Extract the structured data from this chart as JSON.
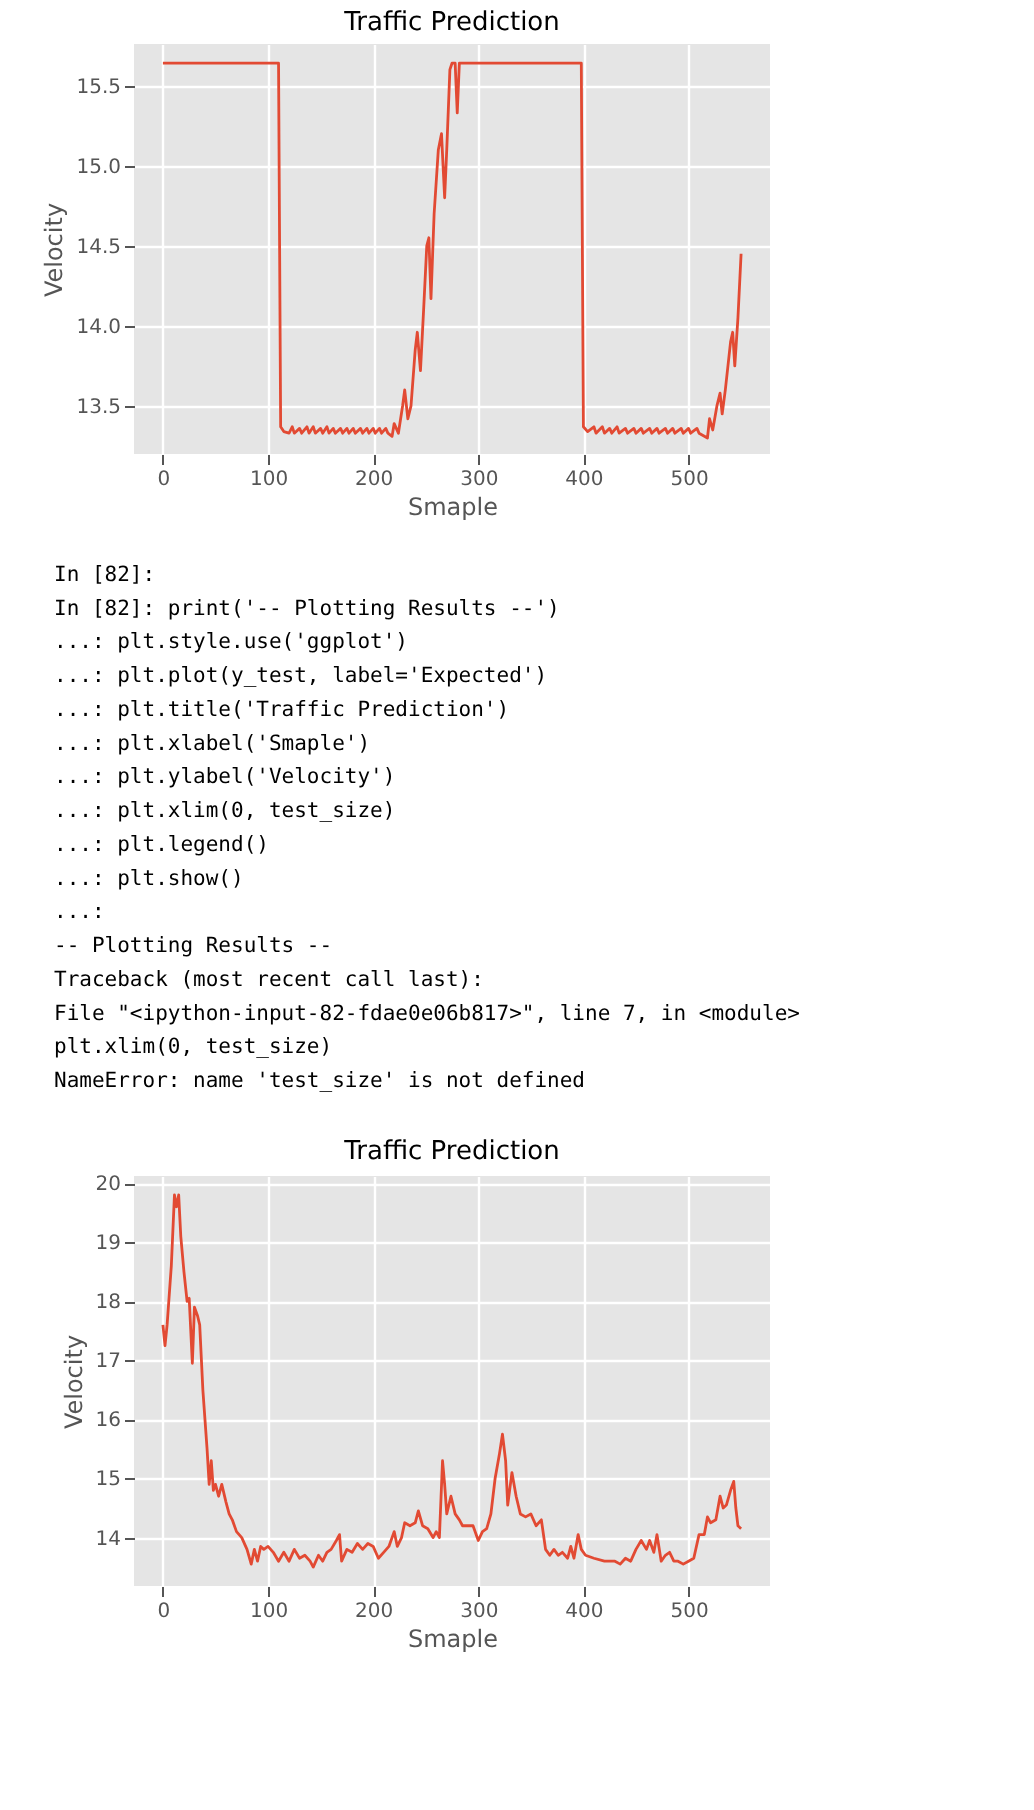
{
  "chart_data": [
    {
      "type": "line",
      "title": "Traffic Prediction",
      "xlabel": "Smaple",
      "ylabel": "Velocity",
      "grid": true,
      "xlim": [
        -27.5,
        577.5
      ],
      "ylim": [
        13.2,
        15.76
      ],
      "xticks": [
        0,
        100,
        200,
        300,
        400,
        500
      ],
      "yticks": [
        13.5,
        {
          "value": 14,
          "label": "14.0"
        },
        14.5,
        {
          "value": 15,
          "label": "15.0"
        },
        15.5
      ],
      "series": [
        {
          "color": "#e24a33",
          "x": [
            0,
            110,
            112,
            115,
            120,
            123,
            125,
            130,
            132,
            137,
            139,
            143,
            145,
            150,
            152,
            156,
            158,
            162,
            164,
            169,
            171,
            175,
            177,
            181,
            183,
            188,
            190,
            194,
            196,
            200,
            202,
            206,
            208,
            212,
            214,
            218,
            220,
            224,
            228,
            230,
            233,
            236,
            240,
            242,
            245,
            248,
            251,
            253,
            255,
            258,
            262,
            265,
            268,
            270,
            273,
            275,
            278,
            280,
            282,
            285,
            398,
            400,
            404,
            410,
            412,
            418,
            420,
            425,
            427,
            432,
            434,
            440,
            442,
            448,
            450,
            455,
            457,
            463,
            465,
            470,
            472,
            478,
            480,
            485,
            487,
            493,
            495,
            500,
            502,
            508,
            510,
            518,
            520,
            523,
            527,
            530,
            532,
            535,
            540,
            542,
            544,
            547,
            550
          ],
          "values": [
            15.64,
            15.64,
            13.37,
            13.34,
            13.33,
            13.37,
            13.33,
            13.36,
            13.33,
            13.37,
            13.33,
            13.37,
            13.33,
            13.36,
            13.33,
            13.37,
            13.33,
            13.36,
            13.33,
            13.36,
            13.33,
            13.36,
            13.33,
            13.36,
            13.33,
            13.36,
            13.33,
            13.36,
            13.33,
            13.36,
            13.33,
            13.36,
            13.33,
            13.36,
            13.33,
            13.31,
            13.39,
            13.33,
            13.5,
            13.6,
            13.42,
            13.5,
            13.85,
            13.96,
            13.72,
            14.1,
            14.5,
            14.55,
            14.17,
            14.7,
            15.1,
            15.2,
            14.8,
            15.1,
            15.6,
            15.64,
            15.64,
            15.33,
            15.64,
            15.64,
            15.64,
            13.37,
            13.34,
            13.37,
            13.33,
            13.37,
            13.33,
            13.36,
            13.33,
            13.37,
            13.33,
            13.36,
            13.33,
            13.36,
            13.33,
            13.36,
            13.33,
            13.36,
            13.33,
            13.36,
            13.33,
            13.36,
            13.33,
            13.36,
            13.33,
            13.36,
            13.33,
            13.36,
            13.33,
            13.36,
            13.33,
            13.3,
            13.42,
            13.35,
            13.5,
            13.58,
            13.45,
            13.6,
            13.9,
            13.96,
            13.75,
            14.05,
            14.45
          ]
        }
      ]
    },
    {
      "type": "other",
      "annotations": [
        "In [82]:",
        "In [82]: print('-- Plotting Results --')",
        "   ...: plt.style.use('ggplot')",
        "   ...: plt.plot(y_test, label='Expected')",
        "   ...: plt.title('Traffic Prediction')",
        "   ...: plt.xlabel('Smaple')",
        "   ...: plt.ylabel('Velocity')",
        "   ...: plt.xlim(0, test_size)",
        "   ...: plt.legend()",
        "   ...: plt.show()",
        "   ...:",
        "-- Plotting Results --",
        "Traceback (most recent call last):",
        "  File \"<ipython-input-82-fdae0e06b817>\", line 7, in <module>",
        "    plt.xlim(0, test_size)",
        "NameError: name 'test_size' is not defined"
      ]
    },
    {
      "type": "line",
      "title": "Traffic Prediction",
      "xlabel": "Smaple",
      "ylabel": "Velocity",
      "grid": true,
      "xlim": [
        -27.5,
        577.5
      ],
      "ylim": [
        13.18,
        20.12
      ],
      "xticks": [
        0,
        100,
        200,
        300,
        400,
        500
      ],
      "yticks": [
        14,
        15,
        16,
        17,
        18,
        19,
        20
      ],
      "series": [
        {
          "color": "#e24a33",
          "x": [
            0,
            2,
            4,
            8,
            11,
            13,
            15,
            17,
            20,
            23,
            25,
            28,
            30,
            33,
            35,
            38,
            42,
            44,
            46,
            48,
            50,
            53,
            56,
            60,
            63,
            66,
            70,
            75,
            80,
            84,
            87,
            90,
            93,
            96,
            100,
            105,
            110,
            115,
            120,
            125,
            130,
            135,
            140,
            143,
            148,
            152,
            156,
            160,
            165,
            168,
            170,
            175,
            180,
            185,
            190,
            195,
            200,
            205,
            210,
            215,
            220,
            223,
            227,
            230,
            235,
            240,
            243,
            247,
            252,
            257,
            260,
            263,
            266,
            268,
            270,
            274,
            278,
            282,
            285,
            290,
            295,
            300,
            304,
            308,
            312,
            316,
            320,
            323,
            326,
            328,
            332,
            336,
            340,
            345,
            350,
            355,
            360,
            364,
            368,
            372,
            376,
            380,
            385,
            388,
            391,
            395,
            398,
            402,
            410,
            420,
            430,
            435,
            440,
            445,
            450,
            455,
            460,
            463,
            467,
            470,
            474,
            478,
            482,
            486,
            490,
            495,
            500,
            505,
            510,
            515,
            518,
            521,
            526,
            530,
            533,
            536,
            540,
            543,
            545,
            547,
            550
          ],
          "values": [
            17.6,
            17.25,
            17.6,
            18.6,
            19.8,
            19.6,
            19.8,
            19.1,
            18.5,
            18.0,
            18.05,
            16.95,
            17.9,
            17.75,
            17.6,
            16.5,
            15.5,
            14.9,
            15.3,
            14.8,
            14.9,
            14.7,
            14.9,
            14.6,
            14.4,
            14.3,
            14.1,
            14.0,
            13.8,
            13.55,
            13.8,
            13.6,
            13.85,
            13.8,
            13.85,
            13.75,
            13.6,
            13.75,
            13.6,
            13.8,
            13.65,
            13.7,
            13.6,
            13.5,
            13.7,
            13.6,
            13.75,
            13.8,
            13.95,
            14.05,
            13.6,
            13.8,
            13.75,
            13.9,
            13.8,
            13.9,
            13.85,
            13.65,
            13.75,
            13.85,
            14.1,
            13.85,
            14.0,
            14.25,
            14.2,
            14.25,
            14.45,
            14.2,
            14.15,
            14.0,
            14.1,
            14.0,
            15.3,
            14.9,
            14.4,
            14.7,
            14.4,
            14.3,
            14.2,
            14.2,
            14.2,
            13.95,
            14.1,
            14.15,
            14.4,
            15.0,
            15.4,
            15.75,
            15.3,
            14.55,
            15.1,
            14.7,
            14.4,
            14.35,
            14.4,
            14.2,
            14.3,
            13.8,
            13.7,
            13.8,
            13.7,
            13.75,
            13.65,
            13.85,
            13.65,
            14.05,
            13.8,
            13.7,
            13.65,
            13.6,
            13.6,
            13.55,
            13.65,
            13.6,
            13.8,
            13.95,
            13.8,
            13.95,
            13.75,
            14.05,
            13.6,
            13.7,
            13.75,
            13.6,
            13.6,
            13.55,
            13.6,
            13.65,
            14.05,
            14.05,
            14.35,
            14.25,
            14.3,
            14.7,
            14.5,
            14.55,
            14.8,
            14.95,
            14.5,
            14.2,
            14.15
          ]
        }
      ]
    }
  ]
}
